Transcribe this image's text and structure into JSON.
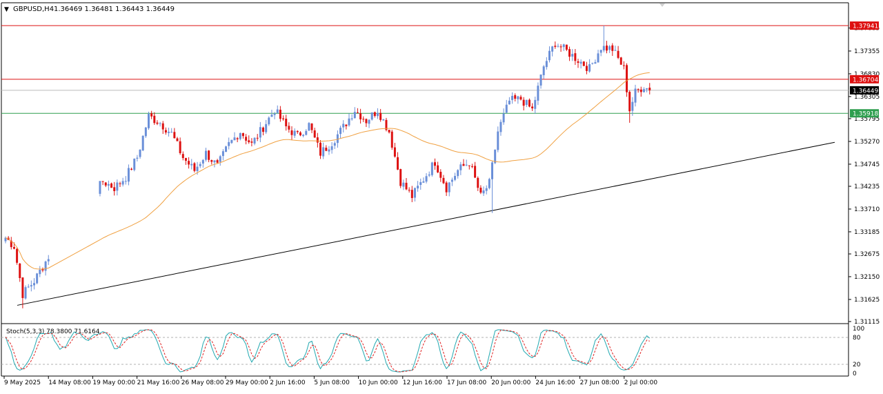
{
  "header": {
    "collapse_glyph": "▼",
    "symbol_timeframe": "GBPUSD,H4",
    "ohlc": "1.36469 1.36481 1.36443 1.36449"
  },
  "colors": {
    "background": "#ffffff",
    "bull": "#6a8fd8",
    "bear": "#dd1111",
    "ma": "#f0a040",
    "trendline": "#000000",
    "resistance": "#dd1111",
    "support": "#2e9e4e",
    "current_price": "#bbbbbb",
    "stoch_main": "#20a8b0",
    "stoch_signal": "#e02020",
    "axis": "#000000"
  },
  "price_axis": {
    "ticks": [
      "1.37885",
      "1.37355",
      "1.36830",
      "1.36305",
      "1.35795",
      "1.35270",
      "1.34745",
      "1.34235",
      "1.33710",
      "1.33185",
      "1.32675",
      "1.32150",
      "1.31625",
      "1.31115"
    ],
    "ylim": [
      1.31115,
      1.3815
    ]
  },
  "levels": [
    {
      "label": "1.37941",
      "value": 1.37941,
      "kind": "resistance"
    },
    {
      "label": "1.36704",
      "value": 1.36704,
      "kind": "resistance"
    },
    {
      "label": "1.36449",
      "value": 1.36449,
      "kind": "current"
    },
    {
      "label": "1.35918",
      "value": 1.35918,
      "kind": "support"
    }
  ],
  "time_axis": {
    "labels": [
      "9 May 2025",
      "14 May 08:00",
      "19 May 00:00",
      "21 May 16:00",
      "26 May 08:00",
      "29 May 00:00",
      "2 Jun 16:00",
      "5 Jun 08:00",
      "10 Jun 00:00",
      "12 Jun 16:00",
      "17 Jun 08:00",
      "20 Jun 00:00",
      "24 Jun 16:00",
      "27 Jun 08:00",
      "2 Jul 00:00"
    ]
  },
  "stochastic": {
    "label": "Stoch(5,3,3) 78.3800 71.6164",
    "main": 78.38,
    "signal": 71.6164,
    "ticks": [
      "100",
      "80",
      "20",
      "0"
    ],
    "levels": [
      80,
      20
    ]
  },
  "chart_data": {
    "type": "candlestick",
    "symbol": "GBPUSD",
    "timeframe": "H4",
    "anchors": [
      [
        0,
        1.3305
      ],
      [
        3,
        1.3285
      ],
      [
        6,
        1.3175
      ],
      [
        10,
        1.3205
      ],
      [
        14,
        1.325
      ],
      [
        18,
        1.3295
      ],
      [
        22,
        1.334
      ],
      [
        24,
        1.339
      ],
      [
        26,
        1.3375
      ],
      [
        30,
        1.3395
      ],
      [
        34,
        1.3435
      ],
      [
        38,
        1.342
      ],
      [
        42,
        1.3445
      ],
      [
        46,
        1.349
      ],
      [
        50,
        1.3585
      ],
      [
        54,
        1.357
      ],
      [
        58,
        1.3545
      ],
      [
        62,
        1.349
      ],
      [
        66,
        1.346
      ],
      [
        70,
        1.35
      ],
      [
        74,
        1.347
      ],
      [
        78,
        1.352
      ],
      [
        82,
        1.355
      ],
      [
        86,
        1.352
      ],
      [
        90,
        1.356
      ],
      [
        94,
        1.36
      ],
      [
        98,
        1.356
      ],
      [
        102,
        1.354
      ],
      [
        106,
        1.3565
      ],
      [
        110,
        1.35
      ],
      [
        114,
        1.3525
      ],
      [
        118,
        1.356
      ],
      [
        122,
        1.36
      ],
      [
        126,
        1.3575
      ],
      [
        130,
        1.36
      ],
      [
        134,
        1.355
      ],
      [
        138,
        1.3435
      ],
      [
        142,
        1.34
      ],
      [
        146,
        1.344
      ],
      [
        150,
        1.348
      ],
      [
        154,
        1.342
      ],
      [
        158,
        1.346
      ],
      [
        162,
        1.348
      ],
      [
        166,
        1.34
      ],
      [
        169,
        1.343
      ],
      [
        172,
        1.355
      ],
      [
        176,
        1.362
      ],
      [
        180,
        1.3625
      ],
      [
        184,
        1.36
      ],
      [
        188,
        1.37
      ],
      [
        192,
        1.3755
      ],
      [
        196,
        1.3735
      ],
      [
        200,
        1.3715
      ],
      [
        204,
        1.3695
      ],
      [
        208,
        1.3745
      ],
      [
        212,
        1.374
      ],
      [
        216,
        1.3695
      ],
      [
        218,
        1.36
      ],
      [
        220,
        1.364
      ],
      [
        223,
        1.3655
      ],
      [
        225,
        1.3645
      ]
    ],
    "gap": [
      16,
      32
    ],
    "ma_period": 50,
    "trendline_points": [
      [
        "9 May 2025",
        1.3149
      ],
      [
        "2 Jul 00:00 +",
        1.3525
      ]
    ],
    "price_ylim": [
      1.31115,
      1.3815
    ],
    "stoch_ylim": [
      0,
      100
    ]
  }
}
